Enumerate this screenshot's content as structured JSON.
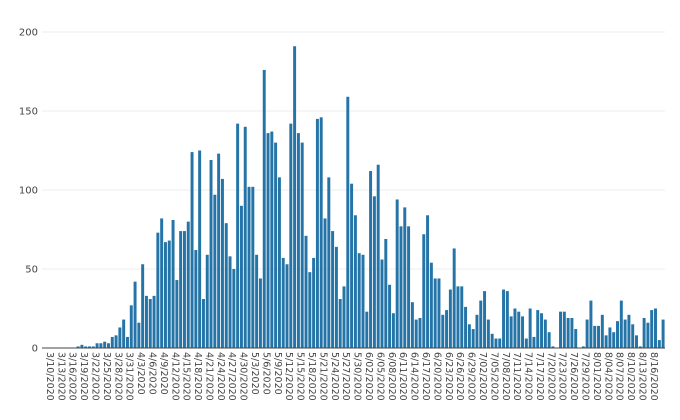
{
  "chart_data": {
    "type": "bar",
    "x_start": "3/10/2020",
    "title": "",
    "xlabel": "",
    "ylabel": "",
    "ylim": [
      0,
      200
    ],
    "yticks": [
      0,
      50,
      100,
      150,
      200
    ],
    "grid": "horizontal",
    "bar_color": "#2474a8",
    "x_tick_labels": [
      "3/10/2020",
      "3/13/2020",
      "3/16/2020",
      "3/19/2020",
      "3/22/2020",
      "3/25/2020",
      "3/28/2020",
      "3/31/2020",
      "4/3/2020",
      "4/6/2020",
      "4/9/2020",
      "4/12/2020",
      "4/15/2020",
      "4/18/2020",
      "4/21/2020",
      "4/24/2020",
      "4/27/2020",
      "4/30/2020",
      "5/3/2020",
      "5/6/2020",
      "5/9/2020",
      "5/12/2020",
      "5/15/2020",
      "5/18/2020",
      "5/21/2020",
      "5/24/2020",
      "5/27/2020",
      "5/30/2020",
      "6/02/2020",
      "6/05/2020",
      "6/08/2020",
      "6/11/2020",
      "6/14/2020",
      "6/17/2020",
      "6/20/2020",
      "6/23/2020",
      "6/26/2020",
      "6/29/2020",
      "7/02/2020",
      "7/05/2020",
      "7/08/2020",
      "7/11/2020",
      "7/14/2020",
      "7/17/2020",
      "7/20/2020",
      "7/23/2020",
      "7/26/2020",
      "7/29/2020",
      "8/01/2020",
      "8/04/2020",
      "8/07/2020",
      "8/10/2020",
      "8/13/2020",
      "8/16/2020"
    ],
    "values": [
      0,
      0,
      0,
      0,
      0,
      0,
      0,
      0,
      0,
      1,
      2,
      1,
      1,
      1,
      3,
      3,
      4,
      3,
      7,
      8,
      13,
      18,
      7,
      27,
      42,
      16,
      53,
      33,
      31,
      33,
      73,
      82,
      67,
      68,
      81,
      43,
      74,
      74,
      80,
      124,
      62,
      125,
      31,
      59,
      119,
      97,
      123,
      107,
      79,
      58,
      50,
      142,
      90,
      140,
      102,
      102,
      59,
      44,
      176,
      136,
      137,
      130,
      108,
      57,
      53,
      142,
      191,
      136,
      130,
      71,
      48,
      57,
      145,
      146,
      82,
      108,
      74,
      64,
      31,
      39,
      159,
      104,
      84,
      60,
      59,
      23,
      112,
      96,
      116,
      56,
      69,
      40,
      22,
      94,
      77,
      89,
      77,
      29,
      18,
      19,
      72,
      84,
      54,
      44,
      44,
      21,
      24,
      37,
      63,
      39,
      39,
      26,
      15,
      12,
      21,
      30,
      36,
      18,
      9,
      6,
      6,
      37,
      36,
      20,
      25,
      23,
      20,
      6,
      25,
      7,
      24,
      22,
      18,
      10,
      1,
      0,
      23,
      23,
      19,
      19,
      12,
      0,
      1,
      18,
      30,
      14,
      14,
      21,
      8,
      13,
      10,
      17,
      30,
      18,
      21,
      15,
      8,
      1,
      19,
      16,
      24,
      25,
      5,
      18
    ]
  }
}
